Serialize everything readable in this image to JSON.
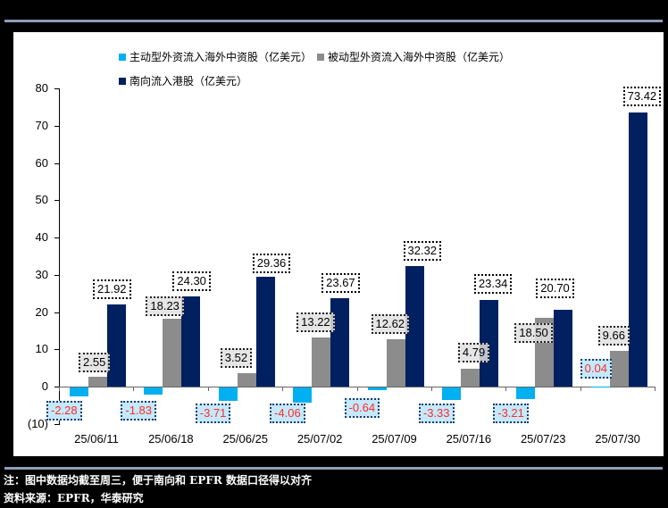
{
  "chart_data": {
    "type": "bar",
    "title": "",
    "xlabel": "",
    "ylabel": "",
    "unit": "亿美元",
    "categories": [
      "25/06/11",
      "25/06/18",
      "25/06/25",
      "25/07/02",
      "25/07/09",
      "25/07/16",
      "25/07/23",
      "25/07/30"
    ],
    "series": [
      {
        "name": "主动型外资流入海外中资股（亿美元）",
        "color": "#00B0F0",
        "values": [
          -2.28,
          -1.83,
          -3.71,
          -4.06,
          -0.64,
          -3.33,
          -3.21,
          0.04
        ]
      },
      {
        "name": "被动型外资流入海外中资股（亿美元）",
        "color": "#8C8C8C",
        "values": [
          2.55,
          18.23,
          3.52,
          13.22,
          12.62,
          4.79,
          18.5,
          9.66
        ]
      },
      {
        "name": "南向流入港股（亿美元）",
        "color": "#002060",
        "values": [
          21.92,
          24.3,
          29.36,
          23.67,
          32.32,
          23.34,
          20.7,
          73.42
        ]
      }
    ],
    "ylim": [
      -10,
      80
    ],
    "yticks": [
      -10,
      0,
      10,
      20,
      30,
      40,
      50,
      60,
      70,
      80
    ],
    "ytick_labels": [
      "(10)",
      "0",
      "10",
      "20",
      "30",
      "40",
      "50",
      "60",
      "70",
      "80"
    ],
    "grid": false,
    "legend_position": "top",
    "data_labels": true
  },
  "legend": {
    "active": "主动型外资流入海外中资股（亿美元）",
    "passive": "被动型外资流入海外中资股（亿美元）",
    "southbound": "南向流入港股（亿美元）"
  },
  "labels": {
    "active": [
      "-2.28",
      "-1.83",
      "-3.71",
      "-4.06",
      "-0.64",
      "-3.33",
      "-3.21",
      "0.04"
    ],
    "passive": [
      "2.55",
      "18.23",
      "3.52",
      "13.22",
      "12.62",
      "4.79",
      "18.50",
      "9.66"
    ],
    "southbound": [
      "21.92",
      "24.30",
      "29.36",
      "23.67",
      "32.32",
      "23.34",
      "20.70",
      "73.42"
    ]
  },
  "footer": {
    "note": "注：图中数据均截至周三，便于南向和 EPFR 数据口径得以对齐",
    "source": "资料来源：EPFR，华泰研究"
  }
}
